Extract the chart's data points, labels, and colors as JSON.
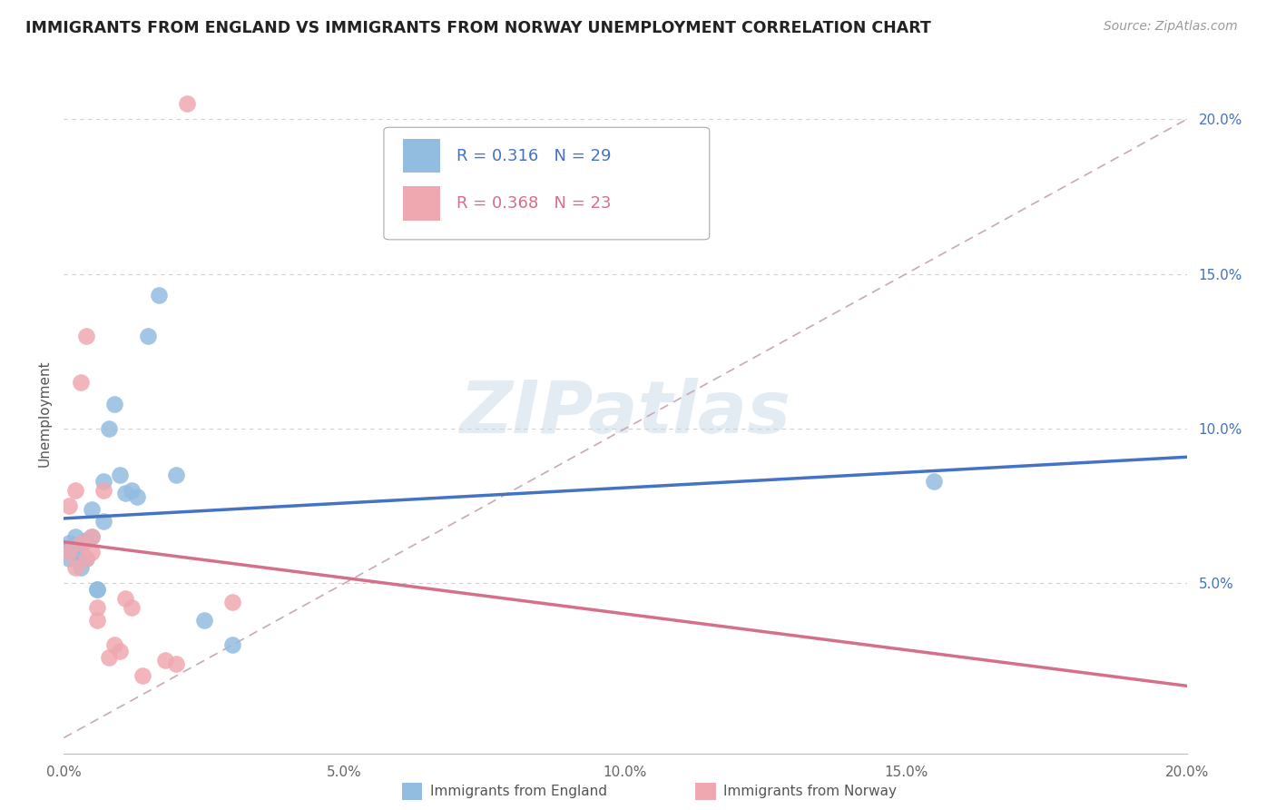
{
  "title": "IMMIGRANTS FROM ENGLAND VS IMMIGRANTS FROM NORWAY UNEMPLOYMENT CORRELATION CHART",
  "source": "Source: ZipAtlas.com",
  "ylabel": "Unemployment",
  "xlim": [
    0.0,
    0.2
  ],
  "ylim": [
    -0.005,
    0.215
  ],
  "x_ticks": [
    0.0,
    0.05,
    0.1,
    0.15,
    0.2
  ],
  "x_tick_labels": [
    "0.0%",
    "5.0%",
    "10.0%",
    "15.0%",
    "20.0%"
  ],
  "y_ticks": [
    0.05,
    0.1,
    0.15,
    0.2
  ],
  "y_tick_labels": [
    "5.0%",
    "10.0%",
    "15.0%",
    "20.0%"
  ],
  "england_R": "0.316",
  "england_N": "29",
  "norway_R": "0.368",
  "norway_N": "23",
  "england_color": "#92bce0",
  "norway_color": "#f0a8b0",
  "england_line_color": "#4472c4",
  "norway_line_color": "#d4708a",
  "diagonal_color": "#c8aab4",
  "background": "#ffffff",
  "grid_color": "#d0d0d0",
  "england_x": [
    0.001,
    0.001,
    0.001,
    0.002,
    0.002,
    0.002,
    0.003,
    0.003,
    0.003,
    0.004,
    0.004,
    0.005,
    0.005,
    0.006,
    0.006,
    0.007,
    0.007,
    0.008,
    0.009,
    0.01,
    0.011,
    0.012,
    0.013,
    0.015,
    0.017,
    0.02,
    0.025,
    0.03,
    0.155
  ],
  "england_y": [
    0.063,
    0.061,
    0.058,
    0.06,
    0.065,
    0.062,
    0.063,
    0.06,
    0.055,
    0.058,
    0.064,
    0.074,
    0.065,
    0.048,
    0.048,
    0.07,
    0.083,
    0.1,
    0.108,
    0.085,
    0.079,
    0.08,
    0.078,
    0.13,
    0.143,
    0.085,
    0.038,
    0.03,
    0.083
  ],
  "norway_x": [
    0.001,
    0.001,
    0.002,
    0.002,
    0.003,
    0.003,
    0.004,
    0.004,
    0.005,
    0.005,
    0.006,
    0.006,
    0.007,
    0.008,
    0.009,
    0.01,
    0.011,
    0.012,
    0.014,
    0.018,
    0.02,
    0.022,
    0.03
  ],
  "norway_y": [
    0.06,
    0.075,
    0.055,
    0.08,
    0.063,
    0.115,
    0.058,
    0.13,
    0.06,
    0.065,
    0.042,
    0.038,
    0.08,
    0.026,
    0.03,
    0.028,
    0.045,
    0.042,
    0.02,
    0.025,
    0.024,
    0.205,
    0.044
  ]
}
